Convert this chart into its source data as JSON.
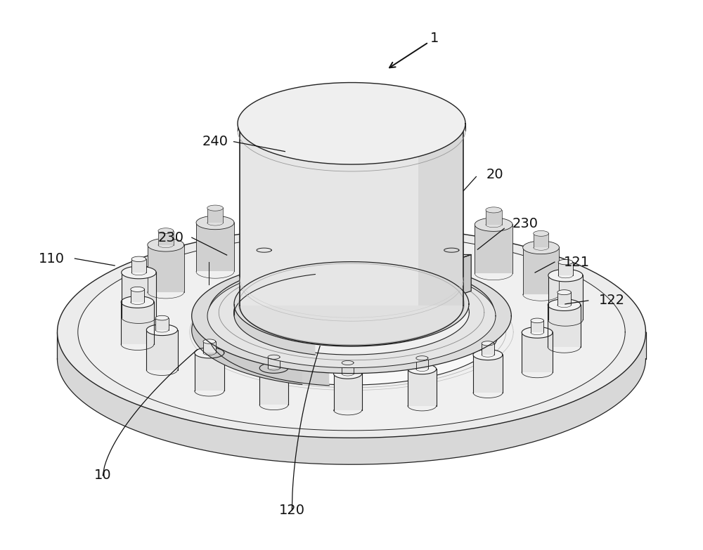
{
  "bg_color": "#ffffff",
  "line_color": "#222222",
  "fig_width": 10.0,
  "fig_height": 7.83,
  "font_size": 14
}
